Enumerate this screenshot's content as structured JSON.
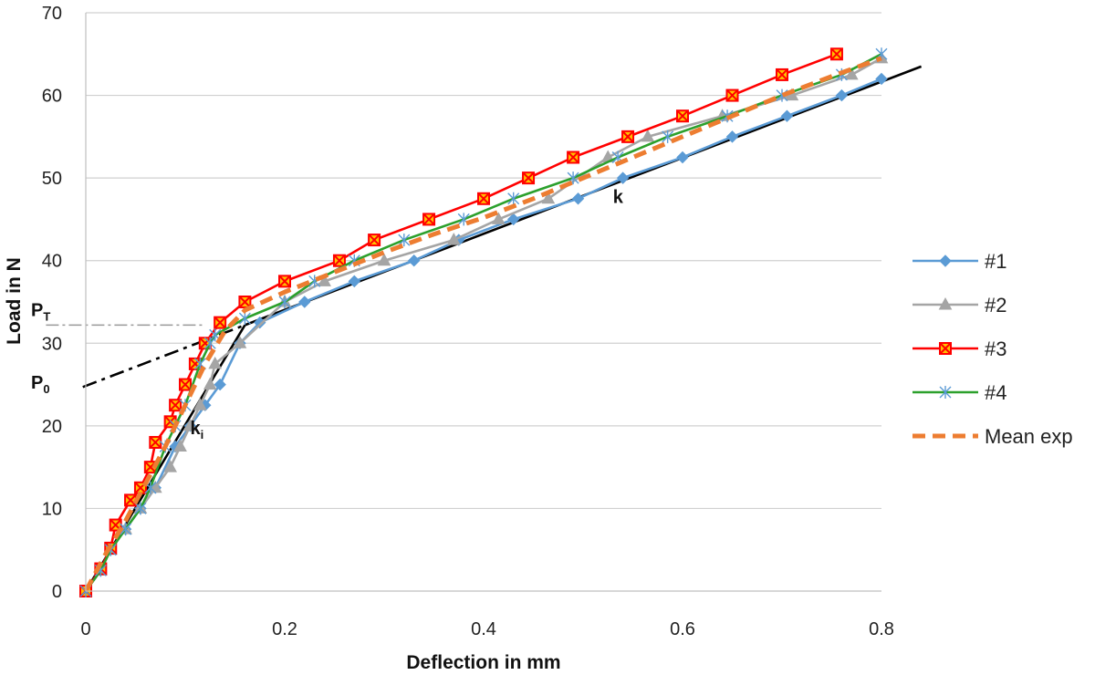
{
  "chart_data": {
    "type": "line",
    "xlabel": "Deflection in mm",
    "ylabel": "Load in N",
    "xlim": [
      0,
      0.8
    ],
    "ylim": [
      0,
      70
    ],
    "xticks": [
      "0",
      "0.2",
      "0.4",
      "0.6",
      "0.8"
    ],
    "xtick_values": [
      0,
      0.2,
      0.4,
      0.6,
      0.8
    ],
    "yticks": [
      "0",
      "10",
      "20",
      "30",
      "40",
      "50",
      "60",
      "70"
    ],
    "ytick_values": [
      0,
      10,
      20,
      30,
      40,
      50,
      60,
      70
    ],
    "grid": "horizontal",
    "legend_position": "right",
    "series": [
      {
        "name": "#1",
        "color": "#5b9bd5",
        "marker": "diamond",
        "dashed": false,
        "x": [
          0,
          0.015,
          0.025,
          0.04,
          0.055,
          0.07,
          0.09,
          0.105,
          0.12,
          0.135,
          0.155,
          0.175,
          0.22,
          0.27,
          0.33,
          0.375,
          0.43,
          0.495,
          0.54,
          0.6,
          0.65,
          0.705,
          0.76,
          0.8
        ],
        "y": [
          0,
          2.5,
          5,
          7.5,
          10,
          12.5,
          17.5,
          20,
          22.5,
          25,
          30,
          32.5,
          35,
          37.5,
          40,
          42.5,
          45,
          47.5,
          50,
          52.5,
          55,
          57.5,
          60,
          62
        ]
      },
      {
        "name": "#2",
        "color": "#a5a5a5",
        "marker": "triangle",
        "dashed": false,
        "x": [
          0,
          0.015,
          0.025,
          0.04,
          0.055,
          0.07,
          0.085,
          0.095,
          0.105,
          0.115,
          0.125,
          0.13,
          0.155,
          0.2,
          0.24,
          0.3,
          0.37,
          0.415,
          0.465,
          0.525,
          0.565,
          0.64,
          0.71,
          0.77,
          0.8
        ],
        "y": [
          0,
          2.5,
          5,
          7.5,
          10,
          12.5,
          15,
          17.5,
          20,
          22.5,
          25,
          27.5,
          30,
          35,
          37.5,
          40,
          42.5,
          45,
          47.5,
          52.5,
          55,
          57.5,
          60,
          62.5,
          64.5
        ]
      },
      {
        "name": "#3",
        "color": "#ff0000",
        "marker": "square-x",
        "dashed": false,
        "x": [
          0,
          0.015,
          0.025,
          0.03,
          0.045,
          0.055,
          0.065,
          0.07,
          0.085,
          0.09,
          0.1,
          0.11,
          0.12,
          0.135,
          0.16,
          0.2,
          0.255,
          0.29,
          0.345,
          0.4,
          0.445,
          0.49,
          0.545,
          0.6,
          0.65,
          0.7,
          0.755
        ],
        "y": [
          0,
          2.7,
          5.2,
          8,
          11,
          12.5,
          15,
          18,
          20.5,
          22.5,
          25,
          27.5,
          30,
          32.5,
          35,
          37.5,
          40,
          42.5,
          45,
          47.5,
          50,
          52.5,
          55,
          57.5,
          60,
          62.5,
          65
        ]
      },
      {
        "name": "#4",
        "color": "#2ca02c",
        "marker": "asterisk",
        "dashed": false,
        "x": [
          0,
          0.015,
          0.025,
          0.04,
          0.055,
          0.065,
          0.08,
          0.09,
          0.1,
          0.115,
          0.125,
          0.13,
          0.16,
          0.2,
          0.23,
          0.27,
          0.32,
          0.38,
          0.43,
          0.49,
          0.535,
          0.585,
          0.645,
          0.7,
          0.76,
          0.8
        ],
        "y": [
          0,
          2.5,
          5,
          7.5,
          10,
          12.5,
          17.5,
          20,
          22.5,
          27.5,
          30,
          31,
          33,
          35,
          37.5,
          40,
          42.5,
          45,
          47.5,
          50,
          52.5,
          55,
          57.5,
          60,
          62.5,
          65
        ]
      },
      {
        "name": "Mean exp",
        "color": "#ed7d31",
        "marker": "none",
        "dashed": true,
        "x": [
          0,
          0.02,
          0.04,
          0.06,
          0.08,
          0.1,
          0.12,
          0.14,
          0.16,
          0.2,
          0.25,
          0.3,
          0.35,
          0.4,
          0.45,
          0.5,
          0.55,
          0.6,
          0.65,
          0.7,
          0.75,
          0.8
        ],
        "y": [
          0,
          4.5,
          8.5,
          13,
          17.5,
          22.5,
          27.5,
          31.5,
          34,
          36.2,
          38.6,
          41,
          43.2,
          45.2,
          47.5,
          50,
          52.5,
          55,
          57.5,
          60,
          62.3,
          64.5
        ]
      }
    ],
    "model_lines": [
      {
        "name": "initial stiffness",
        "x": [
          0,
          0.16
        ],
        "y": [
          0,
          32.2
        ],
        "color": "#000000",
        "dashed": false
      },
      {
        "name": "post stiffness",
        "x": [
          0.16,
          0.84
        ],
        "y": [
          32.2,
          63.5
        ],
        "color": "#000000",
        "dashed": false
      },
      {
        "name": "extrapolation",
        "x": [
          -0.003,
          0.16
        ],
        "y": [
          24.7,
          32.2
        ],
        "color": "#000000",
        "dashed": true
      },
      {
        "name": "PT level",
        "x": [
          -0.04,
          0.12
        ],
        "y": [
          32.2,
          32.2
        ],
        "color": "#999999",
        "dashed": true
      }
    ],
    "annotations": [
      {
        "label": "P",
        "sub": "T",
        "x": -0.055,
        "y": 33.3
      },
      {
        "label": "P",
        "sub": "0",
        "x": -0.055,
        "y": 24.5
      },
      {
        "label": "k",
        "sub": "i",
        "x": 0.105,
        "y": 19.0
      },
      {
        "label": "k",
        "sub": "",
        "x": 0.53,
        "y": 47.0
      }
    ]
  }
}
